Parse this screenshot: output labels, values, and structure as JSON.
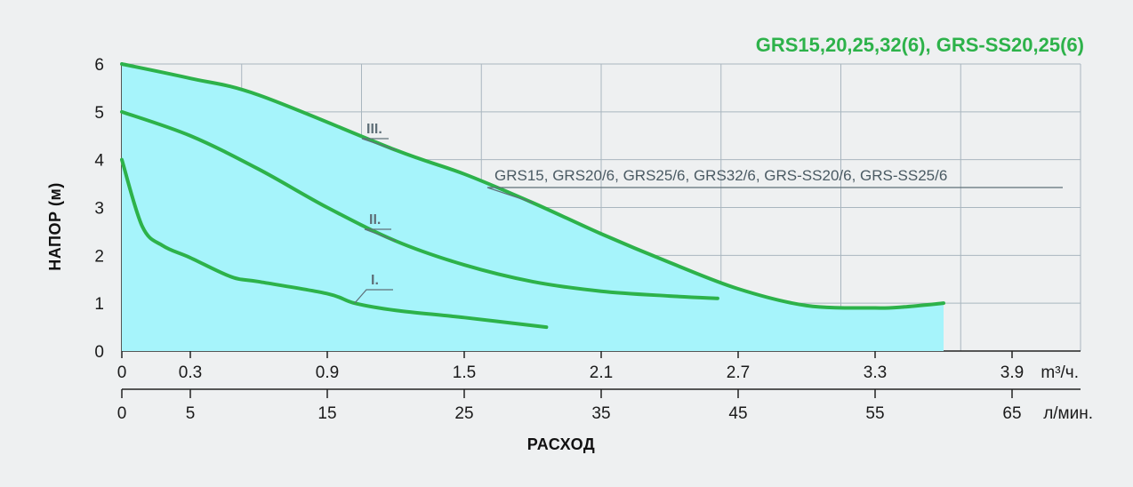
{
  "chart_data": {
    "type": "line",
    "title": "GRS15,20,25,32(6), GRS-SS20,25(6)",
    "annotation": "GRS15, GRS20/6, GRS25/6, GRS32/6, GRS-SS20/6, GRS-SS25/6",
    "ylabel": "НАПОР (м)",
    "xlabel": "РАСХОД",
    "x_unit_primary": "m³/ч.",
    "x_unit_secondary": "л/мин.",
    "x_ticks_primary": [
      "0",
      "0.3",
      "0.9",
      "1.5",
      "2.1",
      "2.7",
      "3.3",
      "3.9"
    ],
    "x_ticks_secondary": [
      "0",
      "5",
      "15",
      "25",
      "35",
      "45",
      "55",
      "65"
    ],
    "y_ticks": [
      "0",
      "1",
      "2",
      "3",
      "4",
      "5",
      "6"
    ],
    "ylim": [
      0,
      6
    ],
    "xlim_secondary": [
      0,
      70
    ],
    "grid": true,
    "colors": {
      "curve": "#2db24a",
      "fill": "#a6f4fb",
      "title": "#2db24a"
    },
    "series": [
      {
        "name": "I.",
        "x": [
          0,
          1.5,
          3,
          5,
          8,
          10,
          15,
          17,
          20,
          25,
          31
        ],
        "y": [
          4,
          2.6,
          2.2,
          1.95,
          1.55,
          1.45,
          1.2,
          1.0,
          0.85,
          0.7,
          0.5
        ]
      },
      {
        "name": "II.",
        "x": [
          0,
          5,
          10,
          15,
          20,
          25,
          30,
          35,
          40,
          43.5
        ],
        "y": [
          5,
          4.5,
          3.8,
          3.0,
          2.3,
          1.8,
          1.45,
          1.25,
          1.15,
          1.1
        ]
      },
      {
        "name": "III.",
        "x": [
          0,
          5,
          10,
          20,
          25,
          30,
          35,
          40,
          45,
          50,
          55,
          57,
          60
        ],
        "y": [
          6,
          5.7,
          5.35,
          4.2,
          3.7,
          3.1,
          2.45,
          1.85,
          1.3,
          0.95,
          0.9,
          0.92,
          1.0
        ]
      }
    ]
  }
}
